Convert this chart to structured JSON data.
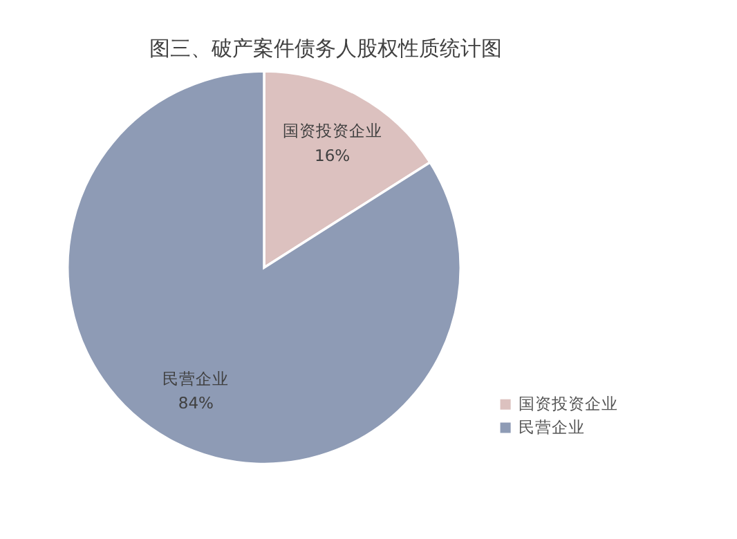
{
  "chart_data": {
    "type": "pie",
    "title": "图三、破产案件债务人股权性质统计图",
    "categories": [
      "国资投资企业",
      "民营企业"
    ],
    "values": [
      16,
      84
    ],
    "value_labels": [
      "16%",
      "84%"
    ],
    "colors": [
      "#dcc1bf",
      "#8e9bb5"
    ],
    "legend": "bottom right"
  }
}
